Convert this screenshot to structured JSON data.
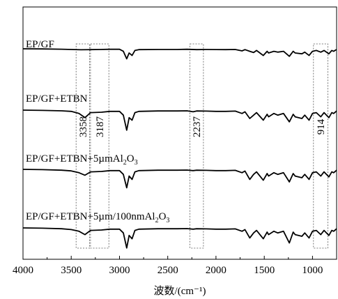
{
  "chart_data": {
    "type": "line",
    "title": "",
    "xlabel": "波数/(cm⁻¹)",
    "ylabel": "",
    "xlim": [
      4000,
      750
    ],
    "x_reversed": true,
    "x_ticks": [
      4000,
      3500,
      3000,
      2500,
      2000,
      1500,
      1000
    ],
    "grid": false,
    "legend": "none",
    "series": [
      {
        "name": "EP/GF",
        "label_base": "EP/GF",
        "label_sub": "",
        "label_tail": "",
        "color": "#000000",
        "points": [
          [
            4000,
            0.0
          ],
          [
            3800,
            -0.2
          ],
          [
            3600,
            -0.5
          ],
          [
            3500,
            -0.8
          ],
          [
            3400,
            -1.2
          ],
          [
            3300,
            -1.0
          ],
          [
            3200,
            -0.8
          ],
          [
            3100,
            -0.6
          ],
          [
            3000,
            -0.6
          ],
          [
            2960,
            -3.0
          ],
          [
            2925,
            -12.0
          ],
          [
            2900,
            -5.0
          ],
          [
            2870,
            -8.0
          ],
          [
            2840,
            -2.0
          ],
          [
            2800,
            -1.0
          ],
          [
            2600,
            -0.8
          ],
          [
            2400,
            -0.8
          ],
          [
            2300,
            -0.6
          ],
          [
            2200,
            -1.0
          ],
          [
            2100,
            -0.8
          ],
          [
            2000,
            -0.9
          ],
          [
            1900,
            -1.0
          ],
          [
            1800,
            -0.8
          ],
          [
            1730,
            -2.5
          ],
          [
            1700,
            -1.0
          ],
          [
            1650,
            -3.0
          ],
          [
            1610,
            -4.5
          ],
          [
            1580,
            -2.0
          ],
          [
            1510,
            -8.0
          ],
          [
            1470,
            -3.0
          ],
          [
            1455,
            -5.0
          ],
          [
            1400,
            -3.0
          ],
          [
            1360,
            -4.0
          ],
          [
            1300,
            -3.0
          ],
          [
            1240,
            -9.0
          ],
          [
            1200,
            -3.0
          ],
          [
            1180,
            -5.0
          ],
          [
            1110,
            -6.0
          ],
          [
            1080,
            -4.0
          ],
          [
            1035,
            -8.0
          ],
          [
            1000,
            -3.0
          ],
          [
            960,
            -2.0
          ],
          [
            914,
            -4.0
          ],
          [
            880,
            -2.0
          ],
          [
            830,
            -6.0
          ],
          [
            800,
            -2.0
          ],
          [
            780,
            -3.0
          ],
          [
            760,
            -1.5
          ],
          [
            750,
            -1.0
          ]
        ]
      },
      {
        "name": "EP/GF+ETBN",
        "label_base": "EP/GF+ETBN",
        "label_sub": "",
        "label_tail": "",
        "color": "#000000",
        "points": [
          [
            4000,
            0.0
          ],
          [
            3800,
            -0.3
          ],
          [
            3600,
            -0.8
          ],
          [
            3500,
            -1.5
          ],
          [
            3420,
            -4.0
          ],
          [
            3358,
            -9.0
          ],
          [
            3300,
            -3.0
          ],
          [
            3187,
            -2.5
          ],
          [
            3100,
            -1.5
          ],
          [
            3000,
            -1.5
          ],
          [
            2960,
            -6.0
          ],
          [
            2925,
            -24.0
          ],
          [
            2900,
            -9.0
          ],
          [
            2870,
            -12.0
          ],
          [
            2840,
            -3.0
          ],
          [
            2800,
            -1.5
          ],
          [
            2600,
            -1.0
          ],
          [
            2400,
            -1.0
          ],
          [
            2300,
            -0.8
          ],
          [
            2237,
            -2.0
          ],
          [
            2200,
            -1.0
          ],
          [
            2100,
            -1.2
          ],
          [
            2000,
            -1.5
          ],
          [
            1900,
            -1.5
          ],
          [
            1800,
            -1.2
          ],
          [
            1730,
            -4.0
          ],
          [
            1700,
            -2.0
          ],
          [
            1650,
            -10.0
          ],
          [
            1610,
            -6.0
          ],
          [
            1580,
            -3.0
          ],
          [
            1510,
            -12.0
          ],
          [
            1470,
            -5.0
          ],
          [
            1455,
            -8.0
          ],
          [
            1400,
            -4.0
          ],
          [
            1360,
            -6.0
          ],
          [
            1300,
            -4.0
          ],
          [
            1240,
            -14.0
          ],
          [
            1200,
            -5.0
          ],
          [
            1180,
            -8.0
          ],
          [
            1110,
            -10.0
          ],
          [
            1080,
            -6.0
          ],
          [
            1035,
            -12.0
          ],
          [
            1000,
            -4.0
          ],
          [
            960,
            -3.0
          ],
          [
            914,
            -8.0
          ],
          [
            880,
            -3.0
          ],
          [
            830,
            -9.0
          ],
          [
            800,
            -3.0
          ],
          [
            780,
            -4.0
          ],
          [
            760,
            -2.0
          ],
          [
            750,
            -1.0
          ]
        ]
      },
      {
        "name": "EP/GF+ETBN+5µmAl₂O₃",
        "label_base": "EP/GF+ETBN+5µmAl",
        "label_sub": "2",
        "label_tail": "O₃",
        "color": "#000000",
        "points": [
          [
            4000,
            0.0
          ],
          [
            3800,
            -0.3
          ],
          [
            3600,
            -1.0
          ],
          [
            3500,
            -1.8
          ],
          [
            3420,
            -4.0
          ],
          [
            3358,
            -7.0
          ],
          [
            3300,
            -3.0
          ],
          [
            3187,
            -2.5
          ],
          [
            3100,
            -1.5
          ],
          [
            3000,
            -1.5
          ],
          [
            2960,
            -6.0
          ],
          [
            2925,
            -22.0
          ],
          [
            2900,
            -8.0
          ],
          [
            2870,
            -12.0
          ],
          [
            2840,
            -3.0
          ],
          [
            2800,
            -1.5
          ],
          [
            2600,
            -1.0
          ],
          [
            2400,
            -1.0
          ],
          [
            2300,
            -0.8
          ],
          [
            2237,
            -1.5
          ],
          [
            2200,
            -1.0
          ],
          [
            2100,
            -1.2
          ],
          [
            2000,
            -1.5
          ],
          [
            1900,
            -1.5
          ],
          [
            1800,
            -1.2
          ],
          [
            1730,
            -4.0
          ],
          [
            1700,
            -2.0
          ],
          [
            1650,
            -12.0
          ],
          [
            1610,
            -6.0
          ],
          [
            1580,
            -3.0
          ],
          [
            1510,
            -13.0
          ],
          [
            1470,
            -5.0
          ],
          [
            1455,
            -8.0
          ],
          [
            1400,
            -4.0
          ],
          [
            1360,
            -6.0
          ],
          [
            1300,
            -4.0
          ],
          [
            1240,
            -15.0
          ],
          [
            1200,
            -5.0
          ],
          [
            1180,
            -8.0
          ],
          [
            1110,
            -10.0
          ],
          [
            1080,
            -6.0
          ],
          [
            1035,
            -12.0
          ],
          [
            1000,
            -4.0
          ],
          [
            960,
            -3.0
          ],
          [
            914,
            -8.0
          ],
          [
            880,
            -3.0
          ],
          [
            830,
            -9.0
          ],
          [
            800,
            -3.0
          ],
          [
            780,
            -4.0
          ],
          [
            760,
            -2.0
          ],
          [
            750,
            -1.0
          ]
        ]
      },
      {
        "name": "EP/GF+ETBN+5µm/100nmAl₂O₃",
        "label_base": "EP/GF+ETBN+5µm/100nmAl",
        "label_sub": "2",
        "label_tail": "O₃",
        "color": "#000000",
        "points": [
          [
            4000,
            0.0
          ],
          [
            3800,
            -0.3
          ],
          [
            3600,
            -1.0
          ],
          [
            3500,
            -2.0
          ],
          [
            3420,
            -4.0
          ],
          [
            3358,
            -8.0
          ],
          [
            3300,
            -3.0
          ],
          [
            3187,
            -2.5
          ],
          [
            3100,
            -1.5
          ],
          [
            3000,
            -1.5
          ],
          [
            2960,
            -6.0
          ],
          [
            2925,
            -24.0
          ],
          [
            2900,
            -9.0
          ],
          [
            2870,
            -13.0
          ],
          [
            2840,
            -3.0
          ],
          [
            2800,
            -1.5
          ],
          [
            2600,
            -1.0
          ],
          [
            2400,
            -1.0
          ],
          [
            2300,
            -0.8
          ],
          [
            2237,
            -1.5
          ],
          [
            2200,
            -1.0
          ],
          [
            2100,
            -1.2
          ],
          [
            2000,
            -1.5
          ],
          [
            1900,
            -1.5
          ],
          [
            1800,
            -1.2
          ],
          [
            1730,
            -4.0
          ],
          [
            1700,
            -2.0
          ],
          [
            1650,
            -12.0
          ],
          [
            1610,
            -6.0
          ],
          [
            1580,
            -3.0
          ],
          [
            1510,
            -13.0
          ],
          [
            1470,
            -5.0
          ],
          [
            1455,
            -8.0
          ],
          [
            1400,
            -4.0
          ],
          [
            1360,
            -6.0
          ],
          [
            1300,
            -4.0
          ],
          [
            1240,
            -18.0
          ],
          [
            1200,
            -5.0
          ],
          [
            1180,
            -8.0
          ],
          [
            1110,
            -10.0
          ],
          [
            1080,
            -6.0
          ],
          [
            1035,
            -12.0
          ],
          [
            1000,
            -4.0
          ],
          [
            960,
            -3.0
          ],
          [
            914,
            -8.0
          ],
          [
            880,
            -3.0
          ],
          [
            830,
            -9.0
          ],
          [
            800,
            -3.0
          ],
          [
            780,
            -4.0
          ],
          [
            760,
            -2.0
          ],
          [
            750,
            -1.0
          ]
        ]
      }
    ],
    "annotations": [
      {
        "label": "3358",
        "x_range": [
          3450,
          3310
        ]
      },
      {
        "label": "3187",
        "x_range": [
          3300,
          3110
        ]
      },
      {
        "label": "2237",
        "x_range": [
          2270,
          2130
        ]
      },
      {
        "label": "914",
        "x_range": [
          990,
          840
        ]
      }
    ]
  }
}
